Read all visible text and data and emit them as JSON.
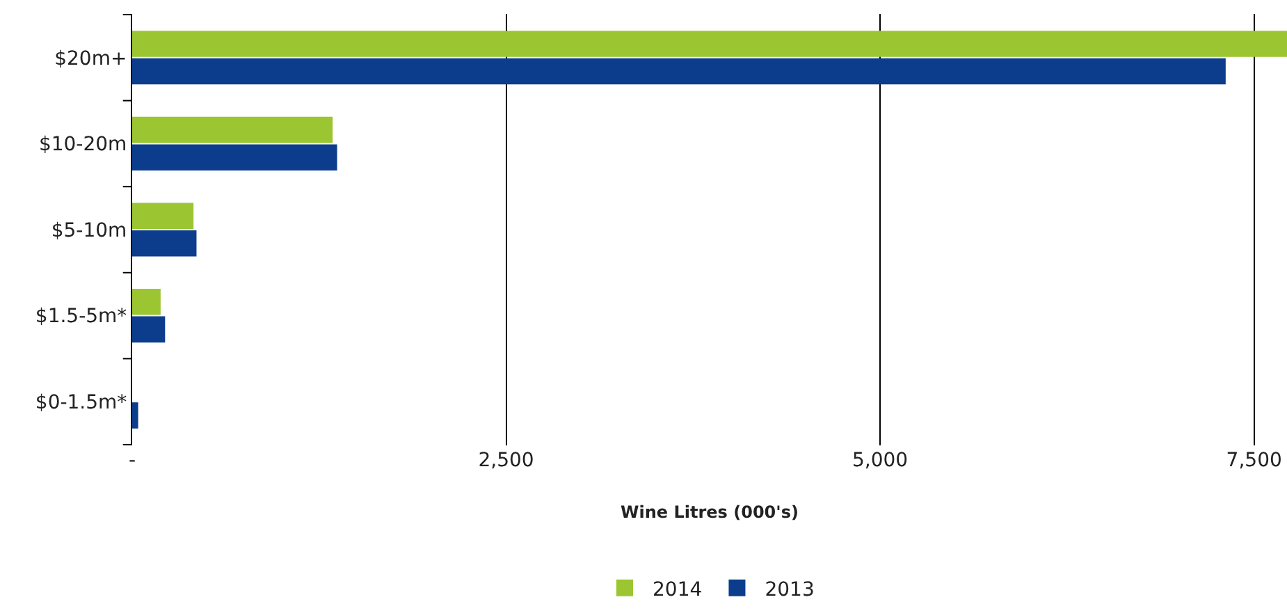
{
  "chart_data": {
    "type": "bar",
    "orientation": "horizontal",
    "categories": [
      "$20m+",
      "$10-20m",
      "$5-10m",
      "$1.5-5m*",
      "$0-1.5m*"
    ],
    "series": [
      {
        "name": "2014",
        "color": "#9bc631",
        "values": [
          7720,
          1340,
          410,
          190,
          null
        ]
      },
      {
        "name": "2013",
        "color": "#0b3d8c",
        "values": [
          7310,
          1370,
          430,
          220,
          40
        ]
      }
    ],
    "xlabel": "Wine Litres (000's)",
    "xlim": [
      0,
      7720
    ],
    "xticks": [
      {
        "value": 0,
        "label": "-"
      },
      {
        "value": 2500,
        "label": "2,500"
      },
      {
        "value": 5000,
        "label": "5,000"
      },
      {
        "value": 7500,
        "label": "7,500"
      }
    ],
    "grid": "x",
    "legend": "bottom"
  }
}
